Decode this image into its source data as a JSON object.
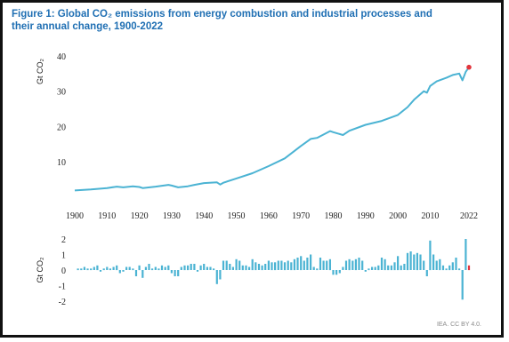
{
  "chart_data": [
    {
      "type": "line",
      "title_lines": [
        "Figure 1: Global CO₂ emissions from energy combustion and industrial processes and",
        "their annual change, 1900-2022"
      ],
      "ylabel": "Gt CO₂",
      "xlabel": "",
      "ylim": [
        0,
        42
      ],
      "yticks": [
        10,
        20,
        30,
        40
      ],
      "grid": false,
      "colors": {
        "line": "#4bb3d3",
        "highlight": "#e2343c"
      },
      "x": [
        1900,
        1905,
        1910,
        1913,
        1915,
        1918,
        1920,
        1921,
        1925,
        1929,
        1930,
        1932,
        1935,
        1937,
        1940,
        1944,
        1945,
        1946,
        1950,
        1955,
        1960,
        1965,
        1970,
        1973,
        1975,
        1979,
        1980,
        1983,
        1985,
        1990,
        1995,
        2000,
        2003,
        2005,
        2008,
        2009,
        2010,
        2012,
        2015,
        2017,
        2019,
        2020,
        2021,
        2022
      ],
      "values": [
        1.9,
        2.2,
        2.6,
        3.0,
        2.8,
        3.1,
        2.9,
        2.6,
        3.0,
        3.5,
        3.3,
        2.8,
        3.1,
        3.5,
        4.0,
        4.2,
        3.6,
        4.1,
        5.3,
        6.8,
        8.8,
        11.0,
        14.5,
        16.5,
        16.8,
        18.7,
        18.4,
        17.6,
        18.8,
        20.5,
        21.6,
        23.3,
        25.5,
        27.6,
        30.0,
        29.6,
        31.5,
        32.8,
        33.8,
        34.6,
        35.0,
        33.1,
        35.5,
        36.8
      ],
      "highlight_point": {
        "x": 2022,
        "y": 36.8
      }
    },
    {
      "type": "bar",
      "ylabel": "Gt CO₂",
      "ylim": [
        -2.4,
        2.4
      ],
      "yticks": [
        -2,
        -1,
        0,
        1,
        2
      ],
      "xlim": [
        1900,
        2022
      ],
      "xticks": [
        1900,
        1910,
        1920,
        1930,
        1940,
        1950,
        1960,
        1970,
        1980,
        1990,
        2000,
        2010,
        2022
      ],
      "colors": {
        "bar": "#4bb3d3",
        "highlight": "#e2343c"
      },
      "x": [
        1901,
        1902,
        1903,
        1904,
        1905,
        1906,
        1907,
        1908,
        1909,
        1910,
        1911,
        1912,
        1913,
        1914,
        1915,
        1916,
        1917,
        1918,
        1919,
        1920,
        1921,
        1922,
        1923,
        1924,
        1925,
        1926,
        1927,
        1928,
        1929,
        1930,
        1931,
        1932,
        1933,
        1934,
        1935,
        1936,
        1937,
        1938,
        1939,
        1940,
        1941,
        1942,
        1943,
        1944,
        1945,
        1946,
        1947,
        1948,
        1949,
        1950,
        1951,
        1952,
        1953,
        1954,
        1955,
        1956,
        1957,
        1958,
        1959,
        1960,
        1961,
        1962,
        1963,
        1964,
        1965,
        1966,
        1967,
        1968,
        1969,
        1970,
        1971,
        1972,
        1973,
        1974,
        1975,
        1976,
        1977,
        1978,
        1979,
        1980,
        1981,
        1982,
        1983,
        1984,
        1985,
        1986,
        1987,
        1988,
        1989,
        1990,
        1991,
        1992,
        1993,
        1994,
        1995,
        1996,
        1997,
        1998,
        1999,
        2000,
        2001,
        2002,
        2003,
        2004,
        2005,
        2006,
        2007,
        2008,
        2009,
        2010,
        2011,
        2012,
        2013,
        2014,
        2015,
        2016,
        2017,
        2018,
        2019,
        2020,
        2021,
        2022
      ],
      "values": [
        0.1,
        0.1,
        0.2,
        0.1,
        0.1,
        0.2,
        0.3,
        -0.1,
        0.1,
        0.2,
        0.1,
        0.2,
        0.3,
        -0.2,
        -0.1,
        0.2,
        0.2,
        0.1,
        -0.4,
        0.3,
        -0.5,
        0.2,
        0.4,
        0.1,
        0.2,
        0.1,
        0.3,
        0.2,
        0.3,
        -0.2,
        -0.4,
        -0.4,
        0.2,
        0.3,
        0.3,
        0.4,
        0.4,
        -0.1,
        0.3,
        0.4,
        0.2,
        0.2,
        0.1,
        -0.9,
        -0.6,
        0.6,
        0.6,
        0.4,
        0.2,
        0.7,
        0.6,
        0.3,
        0.3,
        0.2,
        0.7,
        0.5,
        0.4,
        0.3,
        0.4,
        0.6,
        0.5,
        0.5,
        0.6,
        0.6,
        0.5,
        0.6,
        0.5,
        0.7,
        0.8,
        0.9,
        0.6,
        0.8,
        1.0,
        0.2,
        0.1,
        0.8,
        0.6,
        0.6,
        0.7,
        -0.3,
        -0.3,
        -0.2,
        0.2,
        0.6,
        0.7,
        0.6,
        0.7,
        0.8,
        0.6,
        -0.1,
        0.1,
        0.2,
        0.2,
        0.3,
        0.8,
        0.7,
        0.3,
        0.3,
        0.5,
        0.9,
        0.3,
        0.4,
        1.1,
        1.2,
        1.0,
        1.1,
        1.0,
        0.6,
        -0.4,
        1.9,
        1.0,
        0.6,
        0.7,
        0.3,
        0.1,
        0.3,
        0.5,
        0.8,
        0.1,
        -1.9,
        2.0,
        0.3
      ],
      "highlight_x": 2022
    }
  ],
  "footer": "IEA. CC BY 4.0."
}
